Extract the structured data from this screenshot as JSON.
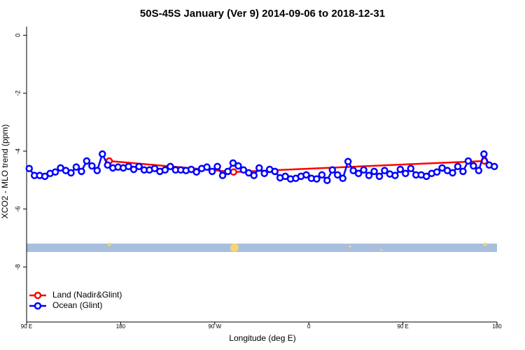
{
  "chart_data": {
    "type": "line",
    "title": "50S-45S January (Ver 9)   2014-09-06 to 2018-12-31",
    "x_label": "Longitude (deg E)",
    "y_label": "XCO2 - MLO trend (ppm)",
    "xlim": [
      90,
      540
    ],
    "ylim": [
      -9.9,
      0.3
    ],
    "xticks": [
      {
        "value": 90,
        "label": "90 E"
      },
      {
        "value": 180,
        "label": "180"
      },
      {
        "value": 270,
        "label": "90 W"
      },
      {
        "value": 360,
        "label": "0"
      },
      {
        "value": 450,
        "label": "90 E"
      },
      {
        "value": 540,
        "label": "180"
      }
    ],
    "yticks": [
      0,
      -2,
      -4,
      -6,
      -8
    ],
    "legend": "bottom-left",
    "series": [
      {
        "name": "Land (Nadir&Glint)",
        "color": "#ff0000",
        "x": [
          169,
          288,
          528
        ],
        "values": [
          -4.34,
          -4.72,
          -4.34
        ]
      },
      {
        "name": "Ocean (Glint)",
        "color": "#0000ff",
        "x": [
          92.5,
          97.5,
          102.5,
          107.5,
          112.5,
          117.5,
          122.5,
          127.5,
          132.5,
          137.5,
          142.5,
          147.5,
          152.5,
          157.5,
          162.5,
          167.5,
          172.5,
          177.5,
          182.5,
          187.5,
          192.5,
          197.5,
          202.5,
          207.5,
          212.5,
          217.5,
          222.5,
          227.5,
          232.5,
          237.5,
          242.5,
          247.5,
          252.5,
          257.5,
          262.5,
          267.5,
          272.5,
          277.5,
          282.5,
          287.5,
          292.5,
          297.5,
          302.5,
          307.5,
          312.5,
          317.5,
          322.5,
          327.5,
          332.5,
          337.5,
          342.5,
          347.5,
          352.5,
          357.5,
          362.5,
          367.5,
          372.5,
          377.5,
          382.5,
          387.5,
          392.5,
          397.5,
          402.5,
          407.5,
          412.5,
          417.5,
          422.5,
          427.5,
          432.5,
          437.5,
          442.5,
          447.5,
          452.5,
          457.5,
          462.5,
          467.5,
          472.5,
          477.5,
          482.5,
          487.5,
          492.5,
          497.5,
          502.5,
          507.5,
          512.5,
          517.5,
          522.5,
          527.5,
          532.5,
          537.5
        ],
        "values": [
          -4.6,
          -4.84,
          -4.84,
          -4.87,
          -4.77,
          -4.72,
          -4.58,
          -4.67,
          -4.75,
          -4.55,
          -4.7,
          -4.34,
          -4.51,
          -4.67,
          -4.1,
          -4.48,
          -4.58,
          -4.55,
          -4.58,
          -4.53,
          -4.63,
          -4.53,
          -4.65,
          -4.65,
          -4.6,
          -4.7,
          -4.65,
          -4.53,
          -4.65,
          -4.65,
          -4.67,
          -4.63,
          -4.72,
          -4.6,
          -4.55,
          -4.7,
          -4.53,
          -4.84,
          -4.7,
          -4.41,
          -4.51,
          -4.65,
          -4.75,
          -4.84,
          -4.58,
          -4.77,
          -4.63,
          -4.7,
          -4.92,
          -4.87,
          -4.96,
          -4.94,
          -4.87,
          -4.82,
          -4.94,
          -4.96,
          -4.82,
          -5.01,
          -4.65,
          -4.82,
          -4.94,
          -4.36,
          -4.67,
          -4.77,
          -4.65,
          -4.84,
          -4.7,
          -4.87,
          -4.67,
          -4.79,
          -4.84,
          -4.63,
          -4.77,
          -4.6,
          -4.82,
          -4.82,
          -4.87,
          -4.77,
          -4.72,
          -4.58,
          -4.67,
          -4.75,
          -4.53,
          -4.7,
          -4.34,
          -4.51,
          -4.67,
          -4.1,
          -4.48,
          -4.53
        ]
      }
    ]
  }
}
